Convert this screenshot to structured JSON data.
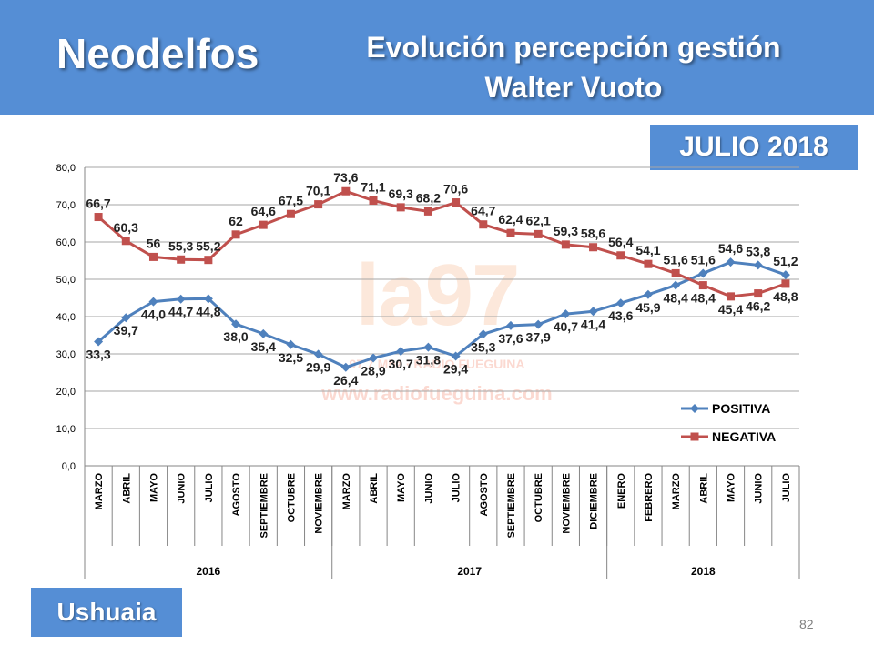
{
  "header": {
    "brand": "Neodelfos",
    "title_line1": "Evolución percepción gestión",
    "title_line2": "Walter Vuoto"
  },
  "date_badge": "JULIO 2018",
  "city_badge": "Ushuaia",
  "page_number": "82",
  "watermark": {
    "logo": "la97",
    "subtitle": "97.7 Mhz · RADIO FUEGUINA",
    "url": "www.radiofueguina.com"
  },
  "colors": {
    "header_bg": "#558ed5",
    "positiva": "#4f81bd",
    "negativa": "#c0504d"
  },
  "chart_data": {
    "type": "line",
    "categories": [
      "MARZO",
      "ABRIL",
      "MAYO",
      "JUNIO",
      "JULIO",
      "AGOSTO",
      "SEPTIEMBRE",
      "OCTUBRE",
      "NOVIEMBRE",
      "MARZO",
      "ABRIL",
      "MAYO",
      "JUNIO",
      "JULIO",
      "AGOSTO",
      "SEPTIEMBRE",
      "OCTUBRE",
      "NOVIEMBRE",
      "DICIEMBRE",
      "ENERO",
      "FEBRERO",
      "MARZO",
      "ABRIL",
      "MAYO",
      "JUNIO",
      "JULIO"
    ],
    "year_groups": [
      {
        "label": "2016",
        "count": 9
      },
      {
        "label": "2017",
        "count": 10
      },
      {
        "label": "2018",
        "count": 7
      }
    ],
    "series": [
      {
        "name": "POSITIVA",
        "color": "#4f81bd",
        "marker": "diamond",
        "values": [
          33.3,
          39.7,
          44.0,
          44.7,
          44.8,
          38.0,
          35.4,
          32.5,
          29.9,
          26.4,
          28.9,
          30.7,
          31.8,
          29.4,
          35.3,
          37.6,
          37.9,
          40.7,
          41.4,
          43.6,
          45.9,
          48.4,
          51.6,
          54.6,
          53.8,
          51.2
        ],
        "labels": [
          "33,3",
          "39,7",
          "44,0",
          "44,7",
          "44,8",
          "38,0",
          "35,4",
          "32,5",
          "29,9",
          "26,4",
          "28,9",
          "30,7",
          "31,8",
          "29,4",
          "35,3",
          "37,6",
          "37,9",
          "40,7",
          "41,4",
          "43,6",
          "45,9",
          "48,4",
          "51,6",
          "54,6",
          "53,8",
          "51,2"
        ]
      },
      {
        "name": "NEGATIVA",
        "color": "#c0504d",
        "marker": "square",
        "values": [
          66.7,
          60.3,
          56.0,
          55.3,
          55.2,
          62.0,
          64.6,
          67.5,
          70.1,
          73.6,
          71.1,
          69.3,
          68.2,
          70.6,
          64.7,
          62.4,
          62.1,
          59.3,
          58.6,
          56.4,
          54.1,
          51.6,
          48.4,
          45.4,
          46.2,
          48.8
        ],
        "labels": [
          "66,7",
          "60,3",
          "56",
          "55,3",
          "55,2",
          "62",
          "64,6",
          "67,5",
          "70,1",
          "73,6",
          "71,1",
          "69,3",
          "68,2",
          "70,6",
          "64,7",
          "62,4",
          "62,1",
          "59,3",
          "58,6",
          "56,4",
          "54,1",
          "51,6",
          "48,4",
          "45,4",
          "46,2",
          "48,8"
        ]
      }
    ],
    "ylim": [
      0,
      80
    ],
    "yticks": [
      "0,0",
      "10,0",
      "20,0",
      "30,0",
      "40,0",
      "50,0",
      "60,0",
      "70,0",
      "80,0"
    ],
    "grid": true,
    "legend": "right"
  }
}
